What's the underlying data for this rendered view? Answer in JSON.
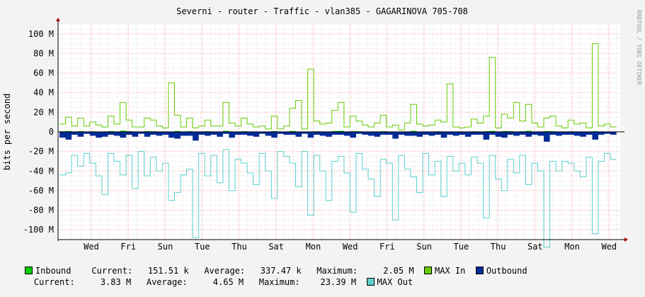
{
  "chart_data": {
    "type": "area",
    "title": "Severni - router - Traffic - vlan385 - GAGARINOVA 705-708",
    "ylabel": "bits per second",
    "watermark": "RRDTOOL / TOBI OETIKER",
    "ylim": [
      -110000000,
      110000000
    ],
    "y_ticks": [
      {
        "value": 100000000,
        "label": "100 M"
      },
      {
        "value": 80000000,
        "label": "80 M"
      },
      {
        "value": 60000000,
        "label": "60 M"
      },
      {
        "value": 40000000,
        "label": "40 M"
      },
      {
        "value": 20000000,
        "label": "20 M"
      },
      {
        "value": 0,
        "label": "0"
      },
      {
        "value": -20000000,
        "label": "-20 M"
      },
      {
        "value": -40000000,
        "label": "-40 M"
      },
      {
        "value": -60000000,
        "label": "-60 M"
      },
      {
        "value": -80000000,
        "label": "-80 M"
      },
      {
        "value": -100000000,
        "label": "-100 M"
      }
    ],
    "x_ticks": [
      "Wed",
      "Fri",
      "Sun",
      "Tue",
      "Thu",
      "Sat",
      "Mon",
      "Wed",
      "Fri",
      "Sun",
      "Tue",
      "Thu",
      "Sat",
      "Mon",
      "Wed"
    ],
    "colors": {
      "inbound": "#00cc00",
      "max_in": "#66cc00",
      "outbound": "#002a97",
      "max_out": "#5fcfcf",
      "grid_major": "#ff9999",
      "grid_minor": "#dddddd",
      "background": "#f3f3f3",
      "plot_bg": "#ffffff"
    },
    "series": [
      {
        "name": "MAX In",
        "unit": "Mbit/s",
        "values": [
          8,
          15,
          6,
          14,
          6,
          10,
          7,
          5,
          16,
          8,
          30,
          12,
          5,
          5,
          14,
          12,
          6,
          4,
          9,
          17,
          5,
          14,
          4,
          6,
          12,
          6,
          6,
          30,
          9,
          6,
          14,
          8,
          5,
          6,
          3,
          16,
          3,
          6,
          24,
          8,
          3,
          6,
          11,
          8,
          9,
          22,
          30,
          5,
          16,
          11,
          7,
          5,
          9,
          17,
          5,
          7,
          2,
          9,
          28,
          8,
          6,
          7,
          12,
          10,
          8,
          5,
          4,
          5,
          13,
          9,
          16,
          30,
          4,
          18,
          14,
          9,
          11,
          28,
          9,
          5,
          14,
          16,
          6,
          4,
          12,
          8,
          9,
          4,
          16,
          6,
          8,
          5
        ]
      },
      {
        "name": "MAX Out",
        "unit": "Mbit/s",
        "values": [
          -44,
          -42,
          -24,
          -35,
          -22,
          -32,
          -45,
          -64,
          -22,
          -30,
          -44,
          -24,
          -58,
          -20,
          -45,
          -26,
          -40,
          -32,
          -70,
          -62,
          -44,
          -38,
          -108,
          -22,
          -45,
          -24,
          -52,
          -18,
          -60,
          -28,
          -32,
          -42,
          -54,
          -22,
          -40,
          -68,
          -20,
          -25,
          -32,
          -56,
          -20,
          -85,
          -24,
          -40,
          -70,
          -30,
          -25,
          -42,
          -82,
          -22,
          -38,
          -48,
          -66,
          -28,
          -32,
          -90,
          -24,
          -38,
          -46,
          -62,
          -22,
          -44,
          -30,
          -66,
          -25,
          -40,
          -32,
          -44,
          -26,
          -32,
          -88,
          -24,
          -48,
          -60,
          -28,
          -42,
          -24,
          -54,
          -32,
          -40,
          -118,
          -30,
          -40,
          -30,
          -32,
          -40,
          -46,
          -26,
          -104,
          -30,
          -22,
          -28
        ]
      },
      {
        "name": "Inbound",
        "unit": "Mbit/s",
        "values": [
          0.5,
          0.8,
          0.4,
          0.6,
          0.3,
          0.5,
          0.4,
          0.2,
          0.7,
          0.4,
          1.2,
          0.6,
          0.2,
          0.2,
          0.6,
          0.5,
          0.3,
          0.2,
          0.4,
          0.8,
          0.2,
          0.6,
          0.2,
          0.3,
          0.5,
          0.3,
          0.3,
          1.0,
          0.4,
          0.3,
          0.6,
          0.4,
          0.2,
          0.3,
          0.2,
          0.7,
          0.2,
          0.3,
          0.9,
          0.4,
          0.2,
          0.3,
          0.5,
          0.4,
          0.4,
          0.8,
          1.0,
          0.2,
          0.6,
          0.5,
          0.3,
          0.2,
          0.4,
          0.6,
          0.2,
          0.3,
          0.1,
          0.4,
          1.0,
          0.4,
          0.3,
          0.3,
          0.5,
          0.4,
          0.4,
          0.2,
          0.2,
          0.2,
          0.5,
          0.4,
          0.6,
          1.0,
          0.2,
          0.7,
          0.6,
          0.4,
          0.5,
          1.0,
          0.4,
          0.2,
          0.6,
          0.6,
          0.3,
          0.2,
          0.5,
          0.4,
          0.4,
          0.2,
          0.6,
          0.3,
          0.4,
          0.2
        ]
      },
      {
        "name": "Outbound",
        "unit": "Mbit/s",
        "values": [
          -6,
          -8,
          -3,
          -5,
          -2,
          -4,
          -6,
          -5,
          -3,
          -4,
          -6,
          -3,
          -5,
          -2,
          -5,
          -3,
          -4,
          -3,
          -6,
          -7,
          -4,
          -4,
          -9,
          -3,
          -4,
          -3,
          -5,
          -2,
          -6,
          -3,
          -3,
          -4,
          -5,
          -2,
          -4,
          -6,
          -2,
          -3,
          -3,
          -5,
          -2,
          -6,
          -3,
          -4,
          -5,
          -3,
          -3,
          -4,
          -6,
          -2,
          -3,
          -4,
          -5,
          -3,
          -3,
          -7,
          -3,
          -4,
          -4,
          -5,
          -3,
          -4,
          -3,
          -6,
          -3,
          -4,
          -3,
          -5,
          -3,
          -3,
          -8,
          -3,
          -5,
          -6,
          -3,
          -4,
          -3,
          -5,
          -3,
          -4,
          -10,
          -3,
          -4,
          -3,
          -3,
          -4,
          -5,
          -3,
          -8,
          -3,
          -2,
          -3
        ]
      },
      {
        "name": "MAX In (spikes)",
        "unit": "Mbit/s",
        "values": [
          {
            "i": 21,
            "v": 50
          },
          {
            "i": 45,
            "v": 32
          },
          {
            "i": 47,
            "v": 64
          },
          {
            "i": 74,
            "v": 49
          },
          {
            "i": 82,
            "v": 76
          },
          {
            "i": 86,
            "v": 30
          },
          {
            "i": 101,
            "v": 90
          }
        ]
      }
    ],
    "spike_note": "",
    "legend": {
      "row1": {
        "inbound_label": "Inbound",
        "inbound_stats": "Current:   151.51 k   Average:   337.47 k   Maximum:     2.05 M",
        "max_in_label": "MAX In",
        "outbound_label": "Outbound"
      },
      "row2": {
        "outbound_stats": "Current:     3.83 M   Average:     4.65 M   Maximum:    23.39 M",
        "max_out_label": "MAX Out"
      }
    }
  }
}
